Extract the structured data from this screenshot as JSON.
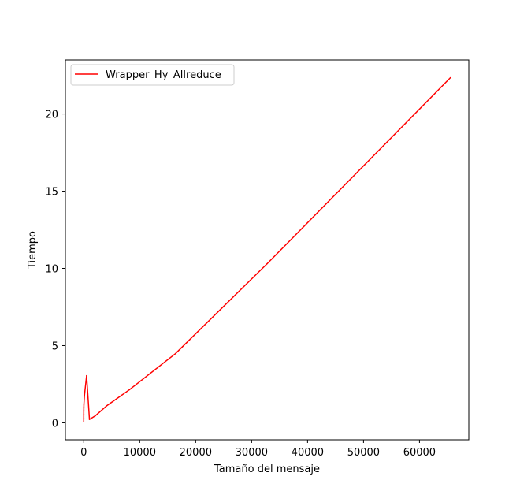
{
  "chart_data": {
    "type": "line",
    "title": "",
    "xlabel": "Tamaño del mensaje",
    "ylabel": "Tiempo",
    "xlim": [
      -3277,
      68813
    ],
    "ylim": [
      -1.1,
      23.5
    ],
    "xticks": [
      0,
      10000,
      20000,
      30000,
      40000,
      50000,
      60000
    ],
    "yticks": [
      0,
      5,
      10,
      15,
      20
    ],
    "grid": false,
    "legend_position": "upper left",
    "series": [
      {
        "name": "Wrapper_Hy_Allreduce",
        "color": "#ff0000",
        "x": [
          1,
          2,
          4,
          8,
          16,
          32,
          64,
          128,
          256,
          512,
          1024,
          2048,
          4096,
          8192,
          16384,
          32768,
          65536
        ],
        "y": [
          0.06,
          0.3,
          0.55,
          0.8,
          1.0,
          1.2,
          1.4,
          1.75,
          2.2,
          3.05,
          0.22,
          0.45,
          1.1,
          2.15,
          4.48,
          10.3,
          22.35
        ]
      }
    ]
  }
}
